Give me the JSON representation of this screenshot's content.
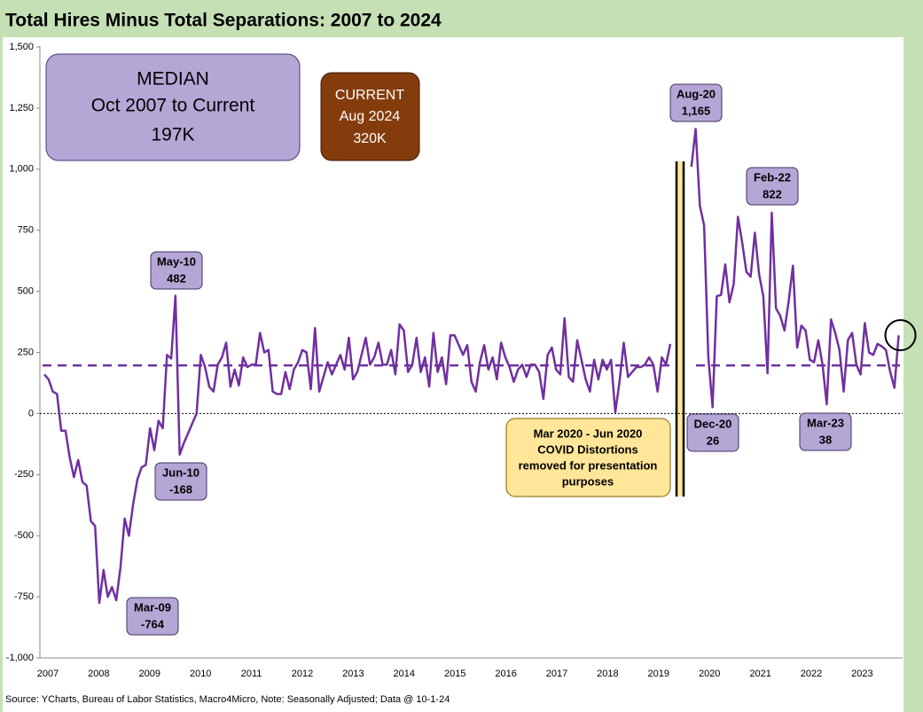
{
  "chart_data": {
    "type": "line",
    "title": "Total Hires Minus Total Separations: 2007 to 2024",
    "source": "Source: YCharts, Bureau of Labor Statistics, Macro4Micro, Note: Seasonally Adjusted; Data @ 10-1-24",
    "color": "#7030a0",
    "values": [
      160,
      140,
      90,
      80,
      -70,
      -70,
      -180,
      -260,
      -190,
      -280,
      -295,
      -440,
      -460,
      -775,
      -640,
      -750,
      -710,
      -764,
      -630,
      -430,
      -500,
      -370,
      -270,
      -220,
      -210,
      -60,
      -150,
      -30,
      -60,
      240,
      225,
      482,
      -168,
      -120,
      -80,
      -40,
      0,
      240,
      190,
      110,
      90,
      200,
      230,
      290,
      110,
      180,
      115,
      230,
      190,
      200,
      200,
      330,
      250,
      260,
      90,
      80,
      80,
      170,
      100,
      180,
      210,
      260,
      250,
      100,
      350,
      90,
      150,
      210,
      160,
      200,
      240,
      180,
      310,
      140,
      170,
      240,
      310,
      200,
      230,
      290,
      200,
      200,
      260,
      160,
      365,
      340,
      170,
      200,
      310,
      170,
      230,
      110,
      330,
      170,
      230,
      120,
      320,
      320,
      280,
      240,
      280,
      130,
      90,
      210,
      280,
      180,
      230,
      140,
      290,
      230,
      190,
      130,
      180,
      200,
      150,
      200,
      200,
      170,
      60,
      240,
      270,
      180,
      160,
      390,
      150,
      130,
      300,
      220,
      140,
      90,
      220,
      140,
      220,
      180,
      220,
      5,
      130,
      290,
      150,
      170,
      190,
      190,
      200,
      230,
      200,
      90,
      230,
      200,
      285,
      null,
      null,
      null,
      null,
      1010,
      1165,
      850,
      770,
      230,
      26,
      480,
      485,
      610,
      455,
      530,
      805,
      700,
      580,
      560,
      740,
      570,
      480,
      165,
      822,
      430,
      400,
      340,
      460,
      605,
      270,
      360,
      340,
      220,
      210,
      300,
      200,
      38,
      385,
      330,
      260,
      90,
      300,
      330,
      200,
      160,
      370,
      250,
      240,
      285,
      275,
      260,
      170,
      105,
      320
    ],
    "xticks": [
      "2007",
      "2008",
      "2009",
      "2010",
      "2011",
      "2012",
      "2013",
      "2014",
      "2015",
      "2016",
      "2017",
      "2018",
      "2019",
      "2020",
      "2021",
      "2022",
      "2023"
    ],
    "ylim": [
      -1000,
      1500
    ],
    "yticks": [
      {
        "value": -1000,
        "label": "-1,000"
      },
      -750,
      -500,
      -250,
      0,
      250,
      500,
      750,
      {
        "value": 1000,
        "label": "1,000"
      },
      {
        "value": 1250,
        "label": "1,250"
      },
      {
        "value": 1500,
        "label": "1,500"
      }
    ],
    "median": {
      "value": 197,
      "title": "MEDIAN",
      "period": "Oct 2007 to Current",
      "label": "197K"
    },
    "current": {
      "title": "CURRENT",
      "date": "Aug 2024",
      "label": "320K"
    },
    "annotations": [
      {
        "date": "May-10",
        "value": 482
      },
      {
        "date": "Jun-10",
        "value": -168
      },
      {
        "date": "Mar-09",
        "value": -764
      },
      {
        "date": "Aug-20",
        "value": 1165,
        "label": "1,165"
      },
      {
        "date": "Dec-20",
        "value": 26
      },
      {
        "date": "Feb-22",
        "value": 822
      },
      {
        "date": "Mar-23",
        "value": 38
      }
    ],
    "note": [
      "Mar 2020 - Jun 2020",
      "COVID Distortions",
      "removed for presentation",
      "purposes"
    ]
  }
}
